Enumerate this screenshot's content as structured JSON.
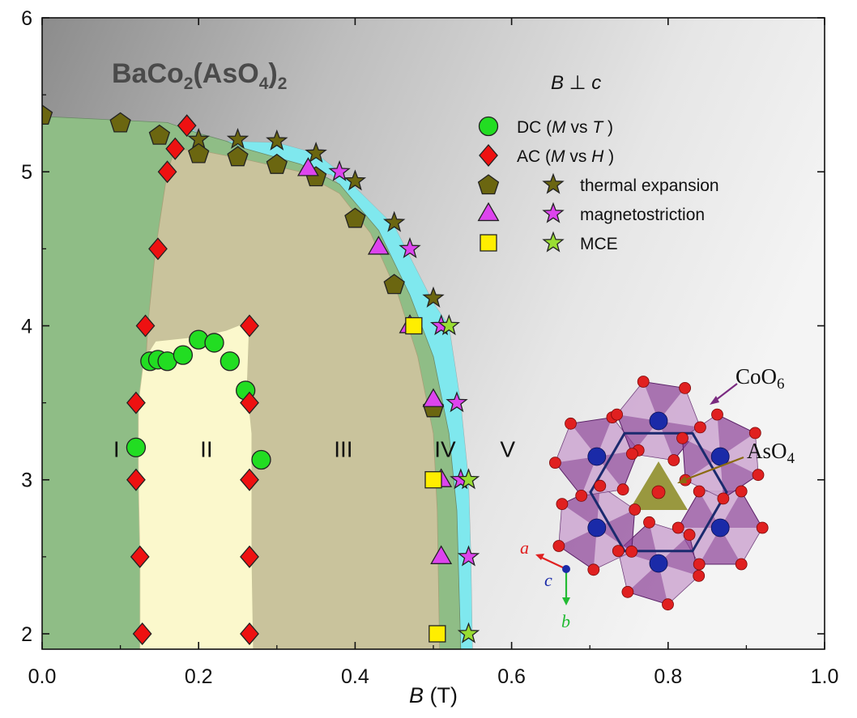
{
  "chart_data": {
    "type": "scatter",
    "title": "BaCo₂(AsO₄)₂",
    "title_parts": {
      "a": "BaCo",
      "b": "2",
      "c": "(AsO",
      "d": "4",
      "e": ")",
      "f": "2"
    },
    "annotation": "B ⊥ c",
    "annotation_parts": {
      "a": "B",
      "b": " ⊥ ",
      "c": "c"
    },
    "xlabel": "B (T)",
    "xlabel_parts": {
      "a": "B",
      "b": " (T)"
    },
    "ylabel": "",
    "xlim": [
      0.0,
      1.0
    ],
    "ylim": [
      1.9,
      6.0
    ],
    "xticks": [
      0.0,
      0.2,
      0.4,
      0.6,
      0.8,
      1.0
    ],
    "xtick_labels": [
      "0.0",
      "0.2",
      "0.4",
      "0.6",
      "0.8",
      "1.0"
    ],
    "yticks": [
      2,
      3,
      4,
      5,
      6
    ],
    "ytick_labels": [
      "2",
      "3",
      "4",
      "5",
      "6"
    ],
    "grid": false,
    "legend_position": "top-right",
    "legend": [
      {
        "label": "DC (M vs T )",
        "parts": [
          "DC (",
          "M",
          " vs ",
          "T",
          " )"
        ],
        "markers": [
          "circle"
        ]
      },
      {
        "label": "AC (M vs H )",
        "parts": [
          "AC (",
          "M",
          " vs ",
          "H",
          " )"
        ],
        "markers": [
          "diamond"
        ]
      },
      {
        "label": "thermal expansion",
        "parts": [
          "thermal expansion"
        ],
        "markers": [
          "pentagon",
          "star-olive"
        ]
      },
      {
        "label": "magnetostriction",
        "parts": [
          "magnetostriction"
        ],
        "markers": [
          "triangle",
          "star-magenta"
        ]
      },
      {
        "label": "MCE",
        "parts": [
          "MCE"
        ],
        "markers": [
          "square",
          "star-green"
        ]
      }
    ],
    "phases": [
      {
        "label": "I",
        "x": 0.095,
        "y": 3.2
      },
      {
        "label": "II",
        "x": 0.21,
        "y": 3.2
      },
      {
        "label": "III",
        "x": 0.385,
        "y": 3.2
      },
      {
        "label": "IV",
        "x": 0.515,
        "y": 3.2
      },
      {
        "label": "V",
        "x": 0.595,
        "y": 3.2
      }
    ],
    "regions": {
      "phase_I": [
        [
          0.0,
          1.9
        ],
        [
          0.0,
          5.36
        ],
        [
          0.16,
          5.32
        ],
        [
          0.2,
          5.25
        ],
        [
          0.235,
          5.2
        ],
        [
          0.26,
          5.15
        ],
        [
          0.33,
          5.05
        ],
        [
          0.38,
          4.92
        ],
        [
          0.43,
          4.62
        ],
        [
          0.47,
          4.2
        ],
        [
          0.5,
          3.8
        ],
        [
          0.52,
          3.3
        ],
        [
          0.53,
          2.8
        ],
        [
          0.535,
          1.9
        ]
      ],
      "phase_III": [
        [
          0.125,
          1.9
        ],
        [
          0.13,
          3.0
        ],
        [
          0.13,
          3.5
        ],
        [
          0.135,
          4.0
        ],
        [
          0.145,
          4.5
        ],
        [
          0.16,
          5.0
        ],
        [
          0.17,
          5.15
        ],
        [
          0.21,
          5.13
        ],
        [
          0.26,
          5.08
        ],
        [
          0.33,
          5.0
        ],
        [
          0.38,
          4.86
        ],
        [
          0.42,
          4.6
        ],
        [
          0.455,
          4.2
        ],
        [
          0.48,
          3.8
        ],
        [
          0.5,
          3.3
        ],
        [
          0.505,
          2.8
        ],
        [
          0.508,
          1.9
        ]
      ],
      "phase_II": [
        [
          0.125,
          1.9
        ],
        [
          0.125,
          2.5
        ],
        [
          0.123,
          3.0
        ],
        [
          0.123,
          3.5
        ],
        [
          0.13,
          3.78
        ],
        [
          0.145,
          3.9
        ],
        [
          0.2,
          3.93
        ],
        [
          0.235,
          3.97
        ],
        [
          0.265,
          4.03
        ],
        [
          0.262,
          3.6
        ],
        [
          0.268,
          3.3
        ],
        [
          0.268,
          3.0
        ],
        [
          0.268,
          2.5
        ],
        [
          0.27,
          1.9
        ]
      ],
      "phase_IV": [
        [
          0.185,
          5.3
        ],
        [
          0.2,
          5.25
        ],
        [
          0.235,
          5.2
        ],
        [
          0.3,
          5.19
        ],
        [
          0.35,
          5.12
        ],
        [
          0.38,
          5.0
        ],
        [
          0.41,
          4.85
        ],
        [
          0.45,
          4.65
        ],
        [
          0.47,
          4.45
        ],
        [
          0.5,
          4.15
        ],
        [
          0.52,
          4.0
        ],
        [
          0.535,
          3.5
        ],
        [
          0.545,
          3.0
        ],
        [
          0.548,
          2.5
        ],
        [
          0.55,
          1.9
        ],
        [
          0.505,
          1.9
        ],
        [
          0.505,
          2.5
        ],
        [
          0.505,
          3.0
        ],
        [
          0.495,
          3.5
        ],
        [
          0.47,
          4.0
        ],
        [
          0.44,
          4.3
        ],
        [
          0.41,
          4.7
        ],
        [
          0.37,
          4.98
        ],
        [
          0.3,
          5.05
        ],
        [
          0.24,
          5.1
        ],
        [
          0.195,
          5.15
        ],
        [
          0.17,
          5.2
        ]
      ]
    },
    "series": [
      {
        "name": "DC (M vs T )",
        "marker": "circle",
        "color": "#22dd22",
        "x": [
          0.12,
          0.138,
          0.148,
          0.16,
          0.18,
          0.2,
          0.22,
          0.24,
          0.26,
          0.28
        ],
        "y": [
          3.21,
          3.77,
          3.78,
          3.77,
          3.81,
          3.91,
          3.89,
          3.77,
          3.58,
          3.13
        ]
      },
      {
        "name": "AC (M vs H )",
        "marker": "diamond",
        "color": "#ee1111",
        "x": [
          0.185,
          0.17,
          0.16,
          0.148,
          0.132,
          0.12,
          0.12,
          0.125,
          0.128,
          0.265,
          0.265,
          0.265,
          0.265,
          0.265
        ],
        "y": [
          5.3,
          5.15,
          5.0,
          4.5,
          4.0,
          3.5,
          3.0,
          2.5,
          2.0,
          4.0,
          3.5,
          3.0,
          2.5,
          2.0
        ]
      },
      {
        "name": "thermal expansion (pentagon)",
        "marker": "pentagon",
        "color": "#6b6610",
        "x": [
          0.0,
          0.1,
          0.15,
          0.2,
          0.25,
          0.3,
          0.35,
          0.4,
          0.45,
          0.5
        ],
        "y": [
          5.37,
          5.32,
          5.24,
          5.12,
          5.1,
          5.05,
          4.97,
          4.7,
          4.27,
          3.47
        ]
      },
      {
        "name": "thermal expansion (star)",
        "marker": "star",
        "color": "#6b6610",
        "x": [
          0.2,
          0.25,
          0.3,
          0.35,
          0.4,
          0.45,
          0.5
        ],
        "y": [
          5.21,
          5.21,
          5.2,
          5.12,
          4.94,
          4.67,
          4.18
        ]
      },
      {
        "name": "magnetostriction (triangle)",
        "marker": "triangle",
        "color": "#dd44ee",
        "x": [
          0.34,
          0.43,
          0.47,
          0.5,
          0.51,
          0.51
        ],
        "y": [
          5.02,
          4.51,
          4.0,
          3.52,
          3.0,
          2.5
        ]
      },
      {
        "name": "magnetostriction (star)",
        "marker": "star",
        "color": "#dd44ee",
        "x": [
          0.38,
          0.47,
          0.51,
          0.53,
          0.535,
          0.545
        ],
        "y": [
          5.0,
          4.5,
          4.0,
          3.5,
          3.0,
          2.5
        ]
      },
      {
        "name": "MCE (square)",
        "marker": "square",
        "color": "#ffee00",
        "x": [
          0.475,
          0.5,
          0.505
        ],
        "y": [
          4.0,
          3.0,
          2.0
        ]
      },
      {
        "name": "MCE (star)",
        "marker": "star",
        "color": "#99dd33",
        "x": [
          0.52,
          0.545,
          0.545
        ],
        "y": [
          4.0,
          3.0,
          2.0
        ]
      }
    ]
  },
  "inset": {
    "labels": {
      "co": "CoO",
      "co_sub": "6",
      "as": "AsO",
      "as_sub": "4"
    },
    "axes": {
      "a": "a",
      "b": "b",
      "c": "c"
    },
    "colors": {
      "oxygen": "#e02020",
      "cobalt": "#1a2aa8",
      "octahedra": "#8a3e96",
      "tetrahedron": "#8a8820",
      "hexagon": "#1b2a6e"
    }
  }
}
